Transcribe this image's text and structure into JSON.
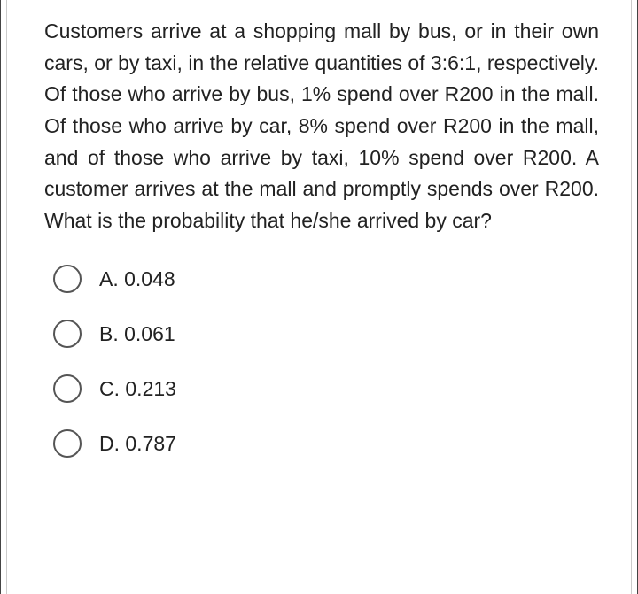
{
  "question": "Customers arrive at a shopping mall by bus, or in their own cars, or by taxi, in the relative quantities of 3:6:1, respectively. Of those who arrive by bus, 1% spend over R200 in the mall. Of those who arrive by car, 8% spend over R200 in the mall, and of those who arrive by taxi, 10% spend over R200. A customer arrives at the mall and promptly spends over R200. What is the probability that he/she arrived by car?",
  "options": [
    {
      "label": "A. 0.048"
    },
    {
      "label": "B. 0.061"
    },
    {
      "label": "C. 0.213"
    },
    {
      "label": "D. 0.787"
    }
  ],
  "style": {
    "font_size": 23,
    "text_color": "#222222",
    "border_color_outer": "#444444",
    "border_color_inner": "#cccccc",
    "radio_border_color": "#555555",
    "radio_size": 32,
    "background": "#ffffff"
  }
}
